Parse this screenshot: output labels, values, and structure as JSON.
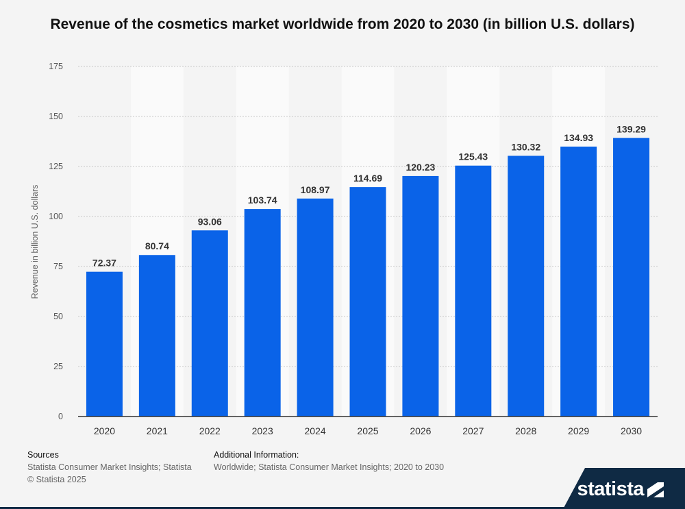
{
  "title": "Revenue of the cosmetics market worldwide from 2020 to 2030 (in billion U.S. dollars)",
  "chart_data": {
    "type": "bar",
    "categories": [
      "2020",
      "2021",
      "2022",
      "2023",
      "2024",
      "2025",
      "2026",
      "2027",
      "2028",
      "2029",
      "2030"
    ],
    "values": [
      72.37,
      80.74,
      93.06,
      103.74,
      108.97,
      114.69,
      120.23,
      125.43,
      130.32,
      134.93,
      139.29
    ],
    "value_labels": [
      "72.37",
      "80.74",
      "93.06",
      "103.74",
      "108.97",
      "114.69",
      "120.23",
      "125.43",
      "130.32",
      "134.93",
      "139.29"
    ],
    "ylabel": "Revenue in billion U.S. dollars",
    "ylim": [
      0,
      175
    ],
    "yticks": [
      0,
      25,
      50,
      75,
      100,
      125,
      150,
      175
    ],
    "bar_color": "#0a63e8",
    "grid": true
  },
  "footer": {
    "sources_heading": "Sources",
    "sources_line": "Statista Consumer Market Insights; Statista",
    "copyright": "© Statista 2025",
    "additional_heading": "Additional Information:",
    "additional_line": "Worldwide; Statista Consumer Market Insights; 2020 to 2030"
  },
  "brand": {
    "name": "statista"
  }
}
